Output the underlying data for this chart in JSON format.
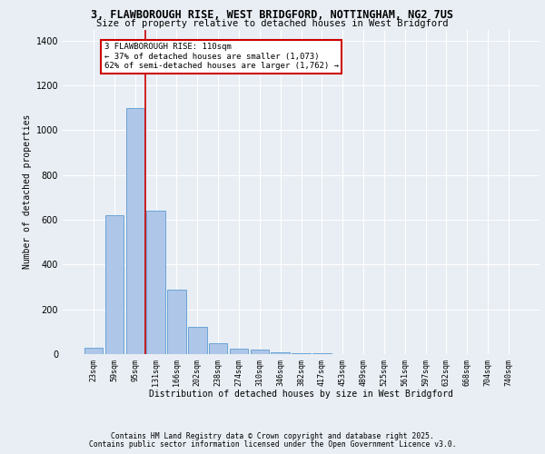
{
  "title1": "3, FLAWBOROUGH RISE, WEST BRIDGFORD, NOTTINGHAM, NG2 7US",
  "title2": "Size of property relative to detached houses in West Bridgford",
  "xlabel": "Distribution of detached houses by size in West Bridgford",
  "ylabel": "Number of detached properties",
  "categories": [
    "23sqm",
    "59sqm",
    "95sqm",
    "131sqm",
    "166sqm",
    "202sqm",
    "238sqm",
    "274sqm",
    "310sqm",
    "346sqm",
    "382sqm",
    "417sqm",
    "453sqm",
    "489sqm",
    "525sqm",
    "561sqm",
    "597sqm",
    "632sqm",
    "668sqm",
    "704sqm",
    "740sqm"
  ],
  "values": [
    30,
    620,
    1100,
    640,
    290,
    120,
    50,
    25,
    20,
    10,
    5,
    3,
    2,
    1,
    1,
    1,
    0,
    0,
    0,
    0,
    0
  ],
  "bar_color": "#aec6e8",
  "bar_edge_color": "#5b9bd5",
  "background_color": "#e8eef4",
  "grid_color": "#ffffff",
  "vline_color": "#cc0000",
  "annotation_text": "3 FLAWBOROUGH RISE: 110sqm\n← 37% of detached houses are smaller (1,073)\n62% of semi-detached houses are larger (1,762) →",
  "annotation_box_color": "#ffffff",
  "annotation_box_edge": "#cc0000",
  "ylim": [
    0,
    1450
  ],
  "yticks": [
    0,
    200,
    400,
    600,
    800,
    1000,
    1200,
    1400
  ],
  "footer1": "Contains HM Land Registry data © Crown copyright and database right 2025.",
  "footer2": "Contains public sector information licensed under the Open Government Licence v3.0."
}
